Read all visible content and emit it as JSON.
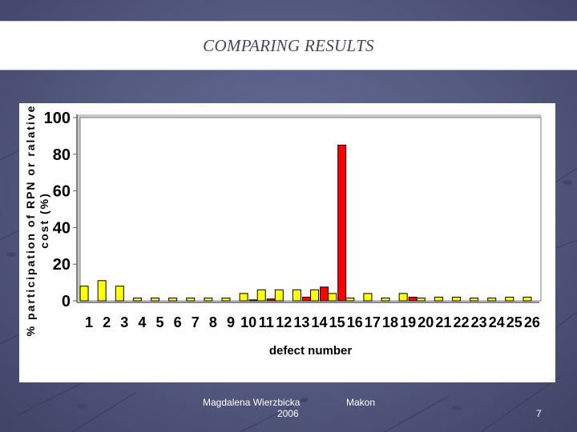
{
  "slide": {
    "title": "COMPARING RESULTS",
    "footer_author": "Magdalena Wierzbicka",
    "footer_year": "2006",
    "footer_company": "Makon",
    "page_number": "7"
  },
  "colors": {
    "background": "#545a80",
    "series_yellow": "#ffff00",
    "series_red": "#ff0000",
    "plot_area": "#ffffff"
  },
  "chart_data": {
    "type": "bar",
    "title": "",
    "xlabel": "defect number",
    "ylabel": "% participation of RPN or ralative cost (%)",
    "ylim": [
      0,
      100
    ],
    "yticks": [
      0,
      20,
      40,
      60,
      80,
      100
    ],
    "grid": false,
    "legend": "none",
    "categories": [
      "1",
      "2",
      "3",
      "4",
      "5",
      "6",
      "7",
      "8",
      "9",
      "10",
      "11",
      "12",
      "13",
      "14",
      "15",
      "16",
      "17",
      "18",
      "19",
      "20",
      "21",
      "22",
      "23",
      "24",
      "25",
      "26"
    ],
    "series": [
      {
        "color": "#ffff00",
        "values": [
          8,
          11,
          8,
          1.5,
          1.5,
          1.5,
          1.5,
          1.5,
          1.5,
          4,
          6,
          6,
          6,
          6,
          4,
          1.5,
          4,
          1.5,
          4,
          1.5,
          2,
          2,
          1.5,
          1.5,
          2,
          2
        ]
      },
      {
        "color": "#ff0000",
        "values": [
          0,
          0,
          0,
          0,
          0,
          0,
          0,
          0,
          0,
          0.5,
          1,
          0,
          2,
          7.5,
          85,
          0,
          0,
          0,
          2,
          0,
          0,
          0,
          0,
          0,
          0,
          0
        ]
      }
    ]
  }
}
